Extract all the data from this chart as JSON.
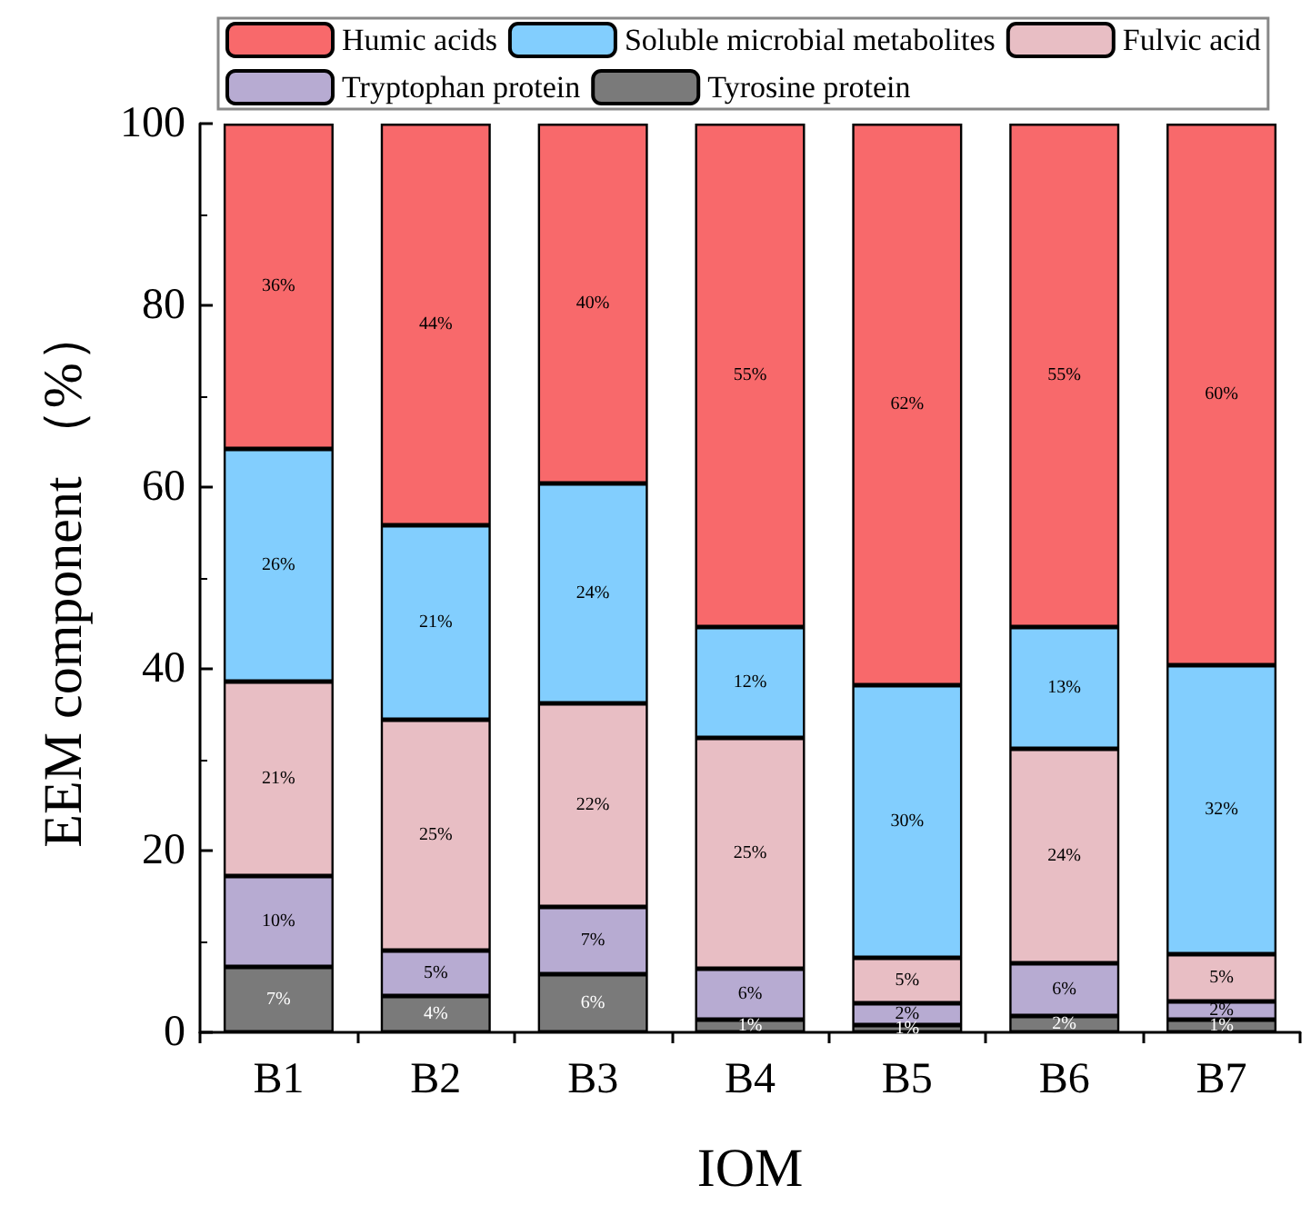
{
  "chart_data": {
    "type": "bar",
    "stacked": true,
    "xlabel": "IOM",
    "ylabel": "EEM component （%）",
    "categories": [
      "B1",
      "B2",
      "B3",
      "B4",
      "B5",
      "B6",
      "B7"
    ],
    "ylim": [
      0,
      100
    ],
    "yticks": [
      0,
      20,
      40,
      60,
      80,
      100
    ],
    "legend": "top",
    "grid": false,
    "series": [
      {
        "name": "Tyrosine protein",
        "color": "#7a7a7a",
        "values": [
          7.2,
          4,
          6.4,
          1.4,
          0.8,
          1.8,
          1.4
        ],
        "value_labels": [
          "7%",
          "4%",
          "6%",
          "1%",
          "1%",
          "2%",
          "1%"
        ]
      },
      {
        "name": "Tryptophan protein",
        "color": "#b7abd2",
        "values": [
          10,
          5,
          7.4,
          5.6,
          2.4,
          5.8,
          2
        ],
        "value_labels": [
          "10%",
          "5%",
          "7%",
          "6%",
          "2%",
          "6%",
          "2%"
        ]
      },
      {
        "name": "Fulvic acid",
        "color": "#e8bec4",
        "values": [
          21.4,
          25.4,
          22.4,
          25.4,
          5,
          23.6,
          5.2
        ],
        "value_labels": [
          "21%",
          "25%",
          "22%",
          "25%",
          "5%",
          "24%",
          "5%"
        ]
      },
      {
        "name": "Soluble microbial metabolites",
        "color": "#82cefe",
        "values": [
          25.6,
          21.4,
          24.2,
          12.2,
          30,
          13.4,
          31.8
        ],
        "value_labels": [
          "26%",
          "21%",
          "24%",
          "12%",
          "30%",
          "13%",
          "32%"
        ]
      },
      {
        "name": "Humic acids",
        "color": "#f8696b",
        "values": [
          35.8,
          44.2,
          39.6,
          55.4,
          61.8,
          55.4,
          59.6
        ],
        "value_labels": [
          "36%",
          "44%",
          "40%",
          "55%",
          "62%",
          "55%",
          "60%"
        ]
      }
    ]
  }
}
